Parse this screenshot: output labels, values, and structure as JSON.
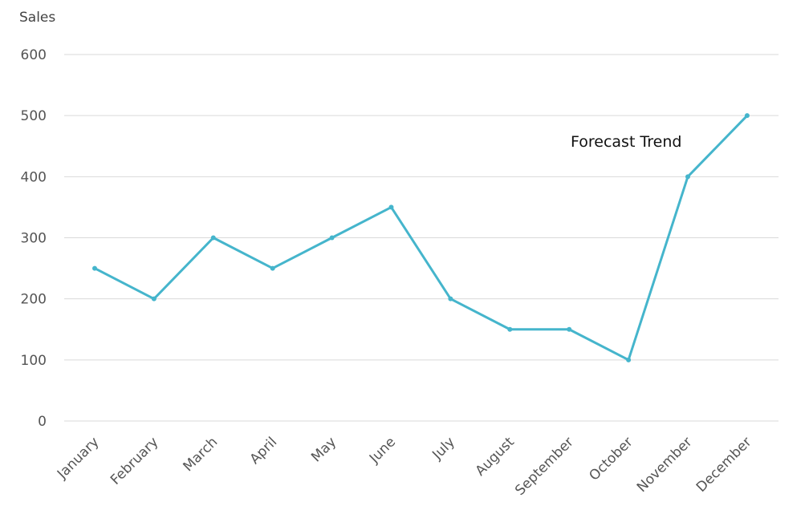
{
  "chart_data": {
    "type": "line",
    "title": "",
    "xlabel": "",
    "ylabel": "Sales",
    "ylim": [
      0,
      600
    ],
    "yticks": [
      0,
      100,
      200,
      300,
      400,
      500,
      600
    ],
    "grid": true,
    "legend": "none",
    "categories": [
      "January",
      "February",
      "March",
      "April",
      "May",
      "June",
      "July",
      "August",
      "September",
      "October",
      "November",
      "December"
    ],
    "series": [
      {
        "values": [
          250,
          200,
          300,
          250,
          300,
          350,
          200,
          150,
          150,
          100,
          400,
          500
        ],
        "color": "#45b5cc"
      }
    ],
    "annotations": [
      {
        "text": "Forecast Trend",
        "near_category": "November"
      }
    ]
  }
}
